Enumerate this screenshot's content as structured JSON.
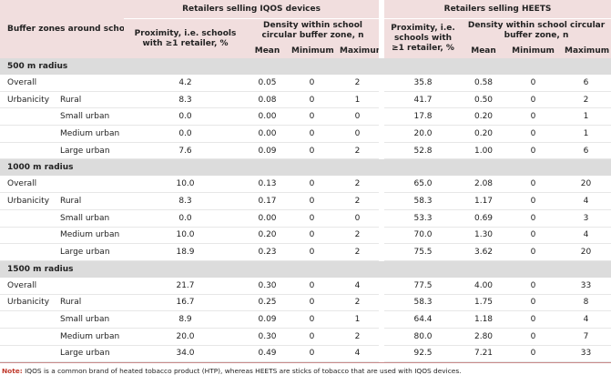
{
  "header": {
    "stub": "Buffer zones around school",
    "group_iqos": "Retailers selling IQOS devices",
    "group_heets": "Retailers selling HEETS",
    "proximity": "Proximity, i.e. schools with ≥1 retailer, %",
    "density": "Density within school circular buffer zone, n",
    "mean": "Mean",
    "minimum": "Minimum",
    "maximum": "Maximum"
  },
  "sections": [
    {
      "title": "500 m radius",
      "rows": [
        {
          "label": "Overall",
          "sub": "",
          "values": [
            "4.2",
            "0.05",
            "0",
            "2",
            "35.8",
            "0.58",
            "0",
            "6"
          ]
        },
        {
          "label": "Urbanicity",
          "sub": "Rural",
          "values": [
            "8.3",
            "0.08",
            "0",
            "1",
            "41.7",
            "0.50",
            "0",
            "2"
          ]
        },
        {
          "label": "",
          "sub": "Small urban",
          "values": [
            "0.0",
            "0.00",
            "0",
            "0",
            "17.8",
            "0.20",
            "0",
            "1"
          ]
        },
        {
          "label": "",
          "sub": "Medium urban",
          "values": [
            "0.0",
            "0.00",
            "0",
            "0",
            "20.0",
            "0.20",
            "0",
            "1"
          ]
        },
        {
          "label": "",
          "sub": "Large urban",
          "values": [
            "7.6",
            "0.09",
            "0",
            "2",
            "52.8",
            "1.00",
            "0",
            "6"
          ]
        }
      ]
    },
    {
      "title": "1000 m radius",
      "rows": [
        {
          "label": "Overall",
          "sub": "",
          "values": [
            "10.0",
            "0.13",
            "0",
            "2",
            "65.0",
            "2.08",
            "0",
            "20"
          ]
        },
        {
          "label": "Urbanicity",
          "sub": "Rural",
          "values": [
            "8.3",
            "0.17",
            "0",
            "2",
            "58.3",
            "1.17",
            "0",
            "4"
          ]
        },
        {
          "label": "",
          "sub": "Small urban",
          "values": [
            "0.0",
            "0.00",
            "0",
            "0",
            "53.3",
            "0.69",
            "0",
            "3"
          ]
        },
        {
          "label": "",
          "sub": "Medium urban",
          "values": [
            "10.0",
            "0.20",
            "0",
            "2",
            "70.0",
            "1.30",
            "0",
            "4"
          ]
        },
        {
          "label": "",
          "sub": "Large urban",
          "values": [
            "18.9",
            "0.23",
            "0",
            "2",
            "75.5",
            "3.62",
            "0",
            "20"
          ]
        }
      ]
    },
    {
      "title": "1500 m radius",
      "rows": [
        {
          "label": "Overall",
          "sub": "",
          "values": [
            "21.7",
            "0.30",
            "0",
            "4",
            "77.5",
            "4.00",
            "0",
            "33"
          ]
        },
        {
          "label": "Urbanicity",
          "sub": "Rural",
          "values": [
            "16.7",
            "0.25",
            "0",
            "2",
            "58.3",
            "1.75",
            "0",
            "8"
          ]
        },
        {
          "label": "",
          "sub": "Small urban",
          "values": [
            "8.9",
            "0.09",
            "0",
            "1",
            "64.4",
            "1.18",
            "0",
            "4"
          ]
        },
        {
          "label": "",
          "sub": "Medium urban",
          "values": [
            "20.0",
            "0.30",
            "0",
            "2",
            "80.0",
            "2.80",
            "0",
            "7"
          ]
        },
        {
          "label": "",
          "sub": "Large urban",
          "values": [
            "34.0",
            "0.49",
            "0",
            "4",
            "92.5",
            "7.21",
            "0",
            "33"
          ]
        }
      ]
    }
  ],
  "note": {
    "label": "Note:",
    "text": " IQOS is a common brand of heated tobacco product (HTP), whereas HEETS are sticks of tobacco that are used with IQOS devices."
  }
}
